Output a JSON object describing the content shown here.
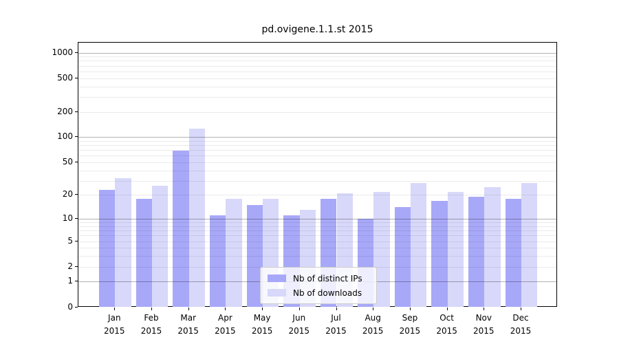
{
  "title": "pd.ovigene.1.1.st 2015",
  "colors": {
    "ips_bar": "#a8a8f8",
    "downloads_bar": "#d8d8fa",
    "axis": "#000000",
    "legend_border": "#cccccc"
  },
  "legend": {
    "items": [
      {
        "label": "Nb of distinct IPs",
        "color_key": "ips_bar"
      },
      {
        "label": "Nb of downloads",
        "color_key": "downloads_bar"
      }
    ]
  },
  "x_axis": {
    "year_label": "2015",
    "months": [
      "Jan",
      "Feb",
      "Mar",
      "Apr",
      "May",
      "Jun",
      "Jul",
      "Aug",
      "Sep",
      "Oct",
      "Nov",
      "Dec"
    ]
  },
  "y_axis": {
    "tick_labels": [
      "0",
      "1",
      "2",
      "5",
      "10",
      "20",
      "50",
      "100",
      "200",
      "500",
      "1000"
    ]
  },
  "chart_data": {
    "type": "bar",
    "title": "pd.ovigene.1.1.st 2015",
    "categories": [
      "Jan 2015",
      "Feb 2015",
      "Mar 2015",
      "Apr 2015",
      "May 2015",
      "Jun 2015",
      "Jul 2015",
      "Aug 2015",
      "Sep 2015",
      "Oct 2015",
      "Nov 2015",
      "Dec 2015"
    ],
    "series": [
      {
        "name": "Nb of distinct IPs",
        "values": [
          23,
          18,
          69,
          11,
          15,
          11,
          18,
          10,
          14,
          17,
          19,
          18
        ]
      },
      {
        "name": "Nb of downloads",
        "values": [
          32,
          26,
          127,
          18,
          18,
          13,
          21,
          22,
          28,
          22,
          25,
          28
        ]
      }
    ],
    "xlabel": "",
    "ylabel": "",
    "y_ticks": [
      0,
      1,
      2,
      5,
      10,
      20,
      50,
      100,
      200,
      500,
      1000
    ],
    "y_minor_gridlines": [
      2,
      3,
      4,
      5,
      6,
      7,
      8,
      9,
      20,
      30,
      40,
      50,
      60,
      70,
      80,
      90,
      200,
      300,
      400,
      500,
      600,
      700,
      800,
      900
    ],
    "y_major_gridlines": [
      1,
      10,
      100,
      1000
    ],
    "y_scale": "log10(value+1)",
    "ylim": [
      0,
      1400
    ],
    "grid": true,
    "legend_position": "lower center"
  }
}
